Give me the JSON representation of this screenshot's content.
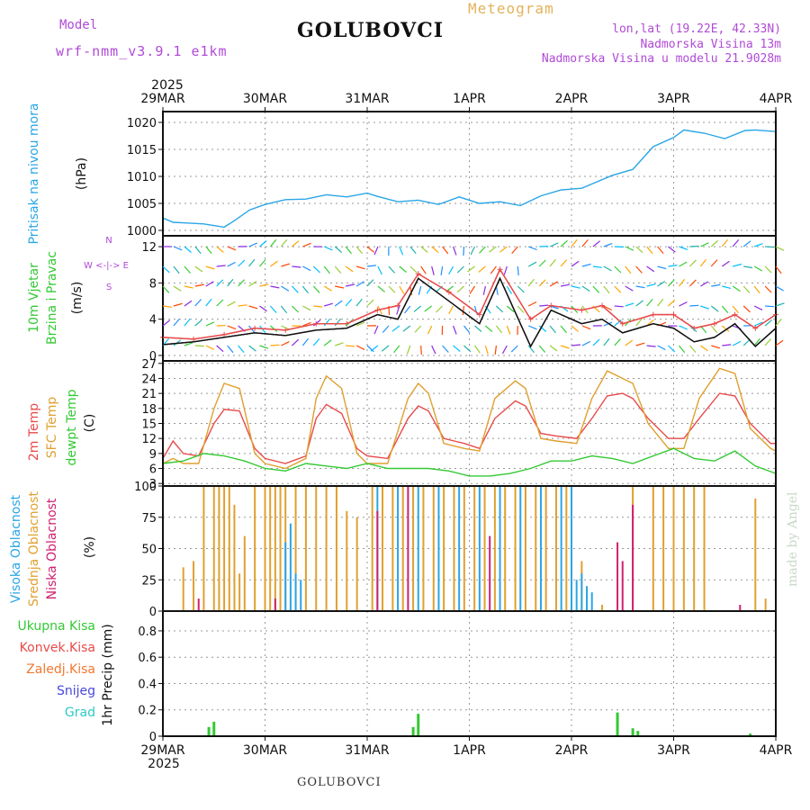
{
  "header": {
    "model_label": "Model",
    "model_name": "wrf-nmm_v3.9.1 e1km",
    "station": "GOLUBOVCI",
    "chart_kind": "Meteogram",
    "coordinates": "lon,lat (19.22E, 42.33N)",
    "elevation": "Nadmorska Visina 13m",
    "model_elevation": "Nadmorska Visina u modelu 21.9028m",
    "credit": "made by Angel",
    "footer_station": "GOLUBOVCI"
  },
  "colors": {
    "pressure": "#2aa6e6",
    "temp_2m": "#e84a4a",
    "sfc_temp": "#e0a030",
    "dewpoint": "#33c933",
    "cloud_high": "#2aa6e6",
    "cloud_mid": "#e0a030",
    "cloud_low": "#d02070",
    "precip_total": "#33c933",
    "precip_conv": "#e84a4a",
    "precip_frozen": "#f07830",
    "snow": "#4848e0",
    "graupel": "#30c8c8",
    "wind_label": "#33c933",
    "compass": "#b04ad8",
    "temp_label_dew": "#33c933"
  },
  "chart_data": [
    {
      "type": "line",
      "panel": "pressure",
      "ylabel_left": "Pritisak na nivou mora",
      "ylabel_unit": "(hPa)",
      "x_start_year": "2025",
      "x_ticks": [
        "29MAR",
        "30MAR",
        "31MAR",
        "1APR",
        "2APR",
        "3APR",
        "4APR"
      ],
      "x_range_days": [
        0,
        6
      ],
      "ylim": [
        999,
        1022
      ],
      "y_ticks": [
        1000,
        1005,
        1010,
        1015,
        1020
      ],
      "grid": true,
      "series": [
        {
          "key": "pressure",
          "x": [
            0,
            0.1,
            0.2,
            0.4,
            0.6,
            0.7,
            0.85,
            1.0,
            1.2,
            1.4,
            1.6,
            1.8,
            2.0,
            2.1,
            2.3,
            2.5,
            2.7,
            2.9,
            3.1,
            3.3,
            3.5,
            3.7,
            3.9,
            4.1,
            4.2,
            4.4,
            4.6,
            4.8,
            5.0,
            5.1,
            5.3,
            5.5,
            5.7,
            5.8,
            6.0
          ],
          "y": [
            1002.3,
            1001.5,
            1001.4,
            1001.2,
            1000.6,
            1001.8,
            1003.8,
            1004.8,
            1005.7,
            1005.8,
            1006.6,
            1006.2,
            1006.9,
            1006.3,
            1005.3,
            1005.6,
            1004.8,
            1006.2,
            1005.0,
            1005.3,
            1004.6,
            1006.4,
            1007.5,
            1007.8,
            1008.6,
            1010.2,
            1011.3,
            1015.5,
            1017.2,
            1018.6,
            1018.0,
            1017.0,
            1018.5,
            1018.6,
            1018.3
          ]
        }
      ]
    },
    {
      "type": "line",
      "panel": "wind",
      "ylabel_left_1": "10m Vjetar",
      "ylabel_left_2": "Brzina i Pravac",
      "ylabel_unit": "(m/s)",
      "compass": "W <-|-> E",
      "compass_n": "N",
      "compass_s": "S",
      "ylim": [
        -0.6,
        13.2
      ],
      "y_ticks": [
        0,
        4,
        8,
        12
      ],
      "grid": true,
      "series": [
        {
          "key": "speed_black",
          "x": [
            0,
            0.3,
            0.6,
            0.9,
            1.2,
            1.5,
            1.8,
            2.1,
            2.3,
            2.5,
            2.8,
            3.1,
            3.3,
            3.6,
            3.8,
            4.1,
            4.3,
            4.5,
            4.8,
            5.0,
            5.2,
            5.4,
            5.6,
            5.8,
            6.0
          ],
          "y": [
            1.2,
            1.5,
            2.0,
            2.5,
            2.2,
            2.8,
            3.0,
            4.5,
            4.0,
            8.5,
            6.0,
            3.5,
            8.5,
            1.0,
            5.0,
            3.5,
            4.0,
            2.5,
            3.5,
            3.0,
            1.5,
            2.0,
            3.5,
            1.0,
            3.0
          ]
        },
        {
          "key": "gust_red",
          "x": [
            0,
            0.3,
            0.6,
            0.9,
            1.2,
            1.5,
            1.8,
            2.1,
            2.3,
            2.5,
            2.8,
            3.1,
            3.3,
            3.6,
            3.8,
            4.1,
            4.3,
            4.5,
            4.8,
            5.0,
            5.2,
            5.4,
            5.6,
            5.8,
            6.0
          ],
          "y": [
            2.0,
            1.8,
            2.3,
            3.0,
            2.8,
            3.5,
            3.5,
            5.0,
            5.5,
            9.0,
            7.0,
            4.5,
            9.5,
            4.0,
            5.5,
            5.0,
            5.5,
            3.5,
            4.5,
            4.5,
            3.0,
            3.5,
            4.5,
            3.0,
            4.5
          ]
        }
      ]
    },
    {
      "type": "line",
      "panel": "temperature",
      "ylabel_left_1": "2m Temp",
      "ylabel_left_2": "SFC Temp",
      "ylabel_left_3": "dewpt Temp",
      "ylabel_unit": "(C)",
      "ylim": [
        2.5,
        27.5
      ],
      "y_ticks": [
        3,
        6,
        9,
        12,
        15,
        18,
        21,
        24,
        27
      ],
      "grid": true,
      "series": [
        {
          "key": "temp_2m",
          "x": [
            0,
            0.1,
            0.2,
            0.35,
            0.5,
            0.6,
            0.75,
            0.9,
            1.0,
            1.2,
            1.4,
            1.5,
            1.6,
            1.75,
            1.9,
            2.0,
            2.2,
            2.4,
            2.5,
            2.6,
            2.75,
            2.95,
            3.1,
            3.25,
            3.45,
            3.55,
            3.7,
            3.85,
            4.05,
            4.2,
            4.35,
            4.5,
            4.6,
            4.75,
            4.95,
            5.1,
            5.25,
            5.45,
            5.6,
            5.75,
            5.95,
            6.0
          ],
          "y": [
            8,
            11.5,
            9,
            8.5,
            15,
            17.8,
            17.5,
            10,
            8,
            7,
            8.5,
            16,
            18.8,
            17,
            10,
            8.5,
            8,
            16,
            18.5,
            17.5,
            12,
            11,
            10,
            16,
            19.5,
            18.5,
            13,
            12.5,
            12,
            16,
            20.5,
            21,
            20,
            16,
            12,
            12,
            16,
            21,
            20.5,
            15,
            11,
            11
          ]
        },
        {
          "key": "sfc_temp",
          "x": [
            0,
            0.1,
            0.2,
            0.35,
            0.5,
            0.6,
            0.75,
            0.9,
            1.0,
            1.2,
            1.4,
            1.5,
            1.6,
            1.75,
            1.9,
            2.0,
            2.2,
            2.4,
            2.5,
            2.6,
            2.75,
            2.95,
            3.1,
            3.25,
            3.45,
            3.55,
            3.7,
            3.85,
            4.05,
            4.2,
            4.35,
            4.5,
            4.6,
            4.75,
            4.95,
            5.1,
            5.25,
            5.45,
            5.6,
            5.75,
            5.95,
            6.0
          ],
          "y": [
            7,
            8,
            7,
            7,
            18,
            23,
            22,
            9,
            7,
            6,
            8,
            20,
            24.5,
            22,
            9,
            7,
            7,
            20,
            23,
            21,
            11,
            10,
            9.5,
            20,
            23.5,
            22,
            12,
            11.5,
            11,
            20,
            25.5,
            24,
            23,
            15,
            10,
            10,
            20,
            26,
            25,
            14,
            10,
            9.5
          ]
        },
        {
          "key": "dewpoint",
          "x": [
            0,
            0.2,
            0.4,
            0.6,
            0.8,
            1.0,
            1.2,
            1.4,
            1.6,
            1.8,
            2.0,
            2.2,
            2.4,
            2.6,
            2.8,
            3.0,
            3.2,
            3.4,
            3.6,
            3.8,
            4.0,
            4.2,
            4.4,
            4.6,
            4.8,
            5.0,
            5.2,
            5.4,
            5.6,
            5.8,
            6.0
          ],
          "y": [
            7,
            7.5,
            9,
            8.5,
            7.5,
            6,
            5.5,
            7,
            6.5,
            6,
            7,
            6,
            6,
            6,
            5.5,
            4.5,
            4.5,
            5,
            6,
            7.5,
            7.5,
            8.5,
            8,
            7,
            8.5,
            10,
            8,
            7.5,
            9.5,
            6.5,
            5
          ]
        }
      ]
    },
    {
      "type": "bar",
      "panel": "cloud",
      "ylabel_left_1": "Visoka Oblacnost",
      "ylabel_left_2": "Srednja Oblacnost",
      "ylabel_left_3": "Niska Oblacnost",
      "ylabel_unit": "(%)",
      "ylim": [
        0,
        100
      ],
      "y_ticks": [
        0,
        25,
        50,
        75,
        100
      ],
      "grid": true,
      "series": [
        {
          "key": "cloud_mid",
          "x": [
            0.2,
            0.3,
            0.4,
            0.5,
            0.55,
            0.6,
            0.65,
            0.7,
            0.75,
            0.8,
            0.9,
            1.0,
            1.05,
            1.1,
            1.15,
            1.2,
            1.3,
            1.4,
            1.5,
            1.6,
            1.7,
            1.8,
            1.9,
            2.05,
            2.15,
            2.25,
            2.35,
            2.45,
            2.55,
            2.65,
            2.75,
            2.85,
            2.95,
            3.05,
            3.15,
            3.25,
            3.35,
            3.45,
            3.55,
            3.65,
            3.75,
            3.85,
            3.95,
            4.1,
            4.3,
            4.6,
            4.8,
            4.9,
            5.0,
            5.1,
            5.2,
            5.3,
            5.8,
            5.9
          ],
          "y": [
            35,
            40,
            100,
            100,
            100,
            100,
            100,
            85,
            30,
            60,
            100,
            100,
            100,
            100,
            100,
            100,
            100,
            100,
            100,
            100,
            100,
            80,
            75,
            100,
            100,
            100,
            100,
            100,
            100,
            100,
            100,
            100,
            100,
            100,
            100,
            100,
            100,
            100,
            100,
            100,
            100,
            100,
            100,
            40,
            5,
            100,
            100,
            100,
            100,
            100,
            100,
            100,
            90,
            10
          ]
        },
        {
          "key": "cloud_high",
          "x": [
            1.2,
            1.25,
            1.3,
            1.35,
            2.1,
            2.3,
            2.5,
            2.7,
            2.9,
            3.1,
            3.3,
            3.5,
            3.7,
            3.9,
            4.0,
            4.05,
            4.1,
            4.15,
            4.2
          ],
          "y": [
            55,
            70,
            30,
            25,
            100,
            100,
            100,
            100,
            100,
            100,
            100,
            100,
            100,
            100,
            100,
            25,
            30,
            20,
            15
          ]
        },
        {
          "key": "cloud_low",
          "x": [
            0.35,
            1.1,
            2.1,
            2.4,
            3.2,
            4.45,
            4.5,
            4.6,
            5.65
          ],
          "y": [
            10,
            10,
            80,
            100,
            60,
            55,
            40,
            85,
            5
          ]
        }
      ]
    },
    {
      "type": "bar",
      "panel": "precip",
      "legend": [
        "Ukupna Kisa",
        "Konvek.Kisa",
        "Zaledj.Kisa",
        "Snijeg",
        "Grad"
      ],
      "ylabel_left": "1hr Precip (mm)",
      "ylim": [
        0,
        0.95
      ],
      "y_ticks": [
        0,
        0.2,
        0.4,
        0.6,
        0.8
      ],
      "grid": true,
      "series": [
        {
          "key": "precip_total",
          "x": [
            0.45,
            0.5,
            2.45,
            2.5,
            4.45,
            4.6,
            4.65,
            5.75
          ],
          "y": [
            0.07,
            0.11,
            0.07,
            0.17,
            0.18,
            0.06,
            0.04,
            0.02
          ]
        }
      ]
    }
  ]
}
